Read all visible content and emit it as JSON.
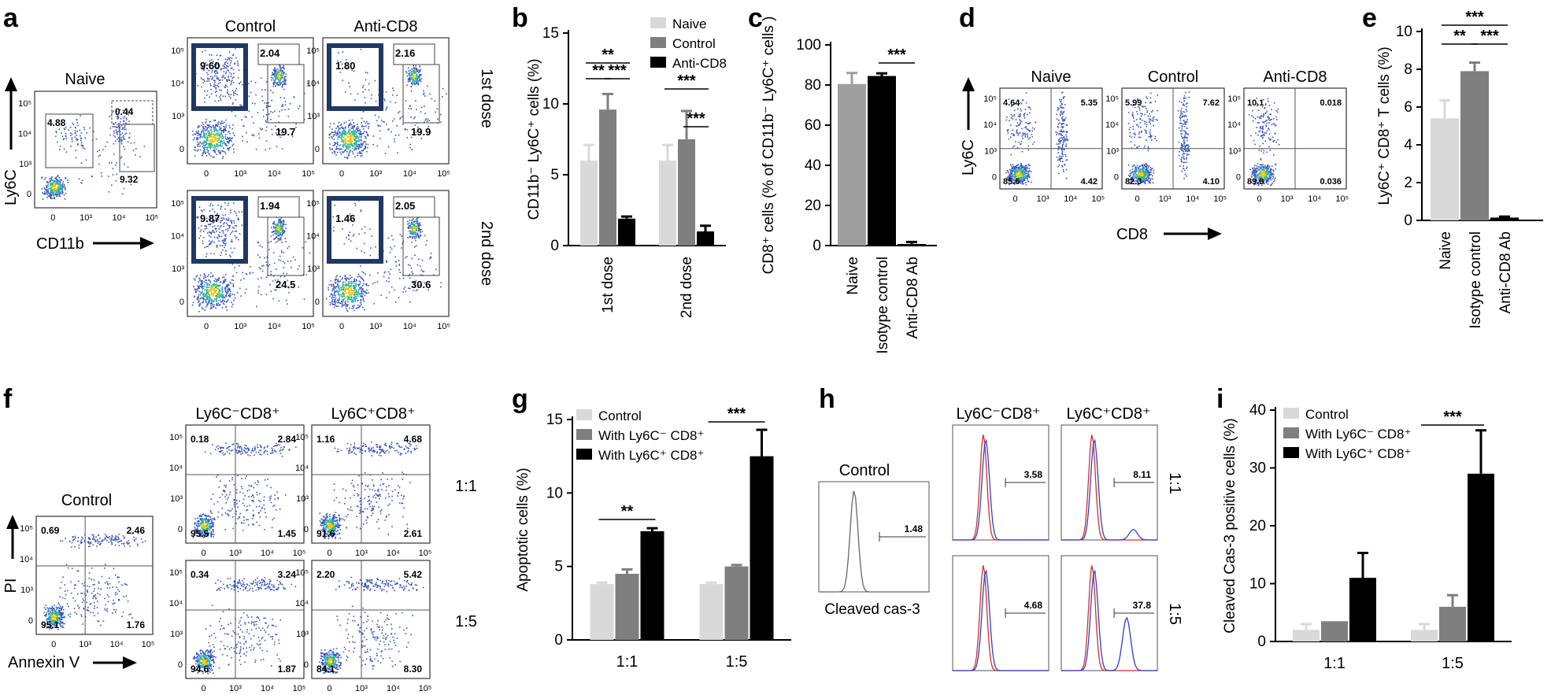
{
  "figure": {
    "panels": {
      "a": {
        "letter": "a",
        "naive_title": "Naive",
        "col_titles": [
          "Control",
          "Anti-CD8"
        ],
        "row_titles": [
          "1st dose",
          "2nd dose"
        ],
        "ylabel": "Ly6C",
        "xlabel": "CD11b",
        "naive_gates": [
          "4.88",
          "0.44",
          "9.32"
        ],
        "plots": [
          {
            "gates": [
              "9.60",
              "2.04",
              "19.7"
            ]
          },
          {
            "gates": [
              "1.80",
              "2.16",
              "19.9"
            ]
          },
          {
            "gates": [
              "9.87",
              "1.94",
              "24.5"
            ]
          },
          {
            "gates": [
              "1.46",
              "2.05",
              "30.6"
            ]
          }
        ]
      },
      "d": {
        "letter": "d",
        "titles": [
          "Naive",
          "Control",
          "Anti-CD8"
        ],
        "ylabel": "Ly6C",
        "xlabel": "CD8",
        "quads": [
          [
            "4.64",
            "5.35",
            "85.6",
            "4.42"
          ],
          [
            "5.99",
            "7.62",
            "82.3",
            "4.10"
          ],
          [
            "10.1",
            "0.018",
            "89.9",
            "0.036"
          ]
        ]
      },
      "f": {
        "letter": "f",
        "control_title": "Control",
        "col_titles": [
          "Ly6C⁻CD8⁺",
          "Ly6C⁺CD8⁺"
        ],
        "row_titles": [
          "1:1",
          "1:5"
        ],
        "ylabel": "PI",
        "xlabel": "Annexin V",
        "control_quads": [
          "0.69",
          "2.46",
          "95.1",
          "1.76"
        ],
        "plots": [
          [
            "0.18",
            "2.84",
            "95.5",
            "1.45"
          ],
          [
            "1.16",
            "4.68",
            "91.6",
            "2.61"
          ],
          [
            "0.34",
            "3.24",
            "94.6",
            "1.87"
          ],
          [
            "2.20",
            "5.42",
            "84.1",
            "8.30"
          ]
        ]
      },
      "h": {
        "letter": "h",
        "control_title": "Control",
        "control_value": "1.48",
        "xlabel": "Cleaved cas-3",
        "col_titles": [
          "Ly6C⁻CD8⁺",
          "Ly6C⁺CD8⁺"
        ],
        "row_titles": [
          "1:1",
          "1:5"
        ],
        "values": [
          "3.58",
          "8.11",
          "4.68",
          "37.8"
        ]
      }
    }
  },
  "chart_data": [
    {
      "panel": "b",
      "type": "bar",
      "categories": [
        "1st dose",
        "2nd dose"
      ],
      "series": [
        {
          "name": "Naive",
          "values": [
            6.0,
            6.0
          ],
          "errors": [
            1.1,
            1.1
          ],
          "color": "#d9d9d9"
        },
        {
          "name": "Control",
          "values": [
            9.6,
            7.5
          ],
          "errors": [
            1.1,
            2.0
          ],
          "color": "#7f7f7f"
        },
        {
          "name": "Anti-CD8",
          "values": [
            1.9,
            1.0
          ],
          "errors": [
            0.15,
            0.4
          ],
          "color": "#000000"
        }
      ],
      "ylabel": "CD11b⁻ Ly6C⁺ cells (%)",
      "xlabel": "",
      "ylim": [
        0,
        15
      ],
      "yticks": [
        0,
        5,
        10,
        15
      ],
      "legend": "top-right",
      "significance": [
        {
          "group": 0,
          "from": 0,
          "to": 2,
          "label": "**"
        },
        {
          "group": 0,
          "from": 0,
          "to": 1,
          "label": "**"
        },
        {
          "group": 0,
          "from": 1,
          "to": 2,
          "label": "***"
        },
        {
          "group": 1,
          "from": 0,
          "to": 2,
          "label": "***"
        },
        {
          "group": 1,
          "from": 1,
          "to": 2,
          "label": "***"
        }
      ]
    },
    {
      "panel": "c",
      "type": "bar",
      "categories": [
        "Naive",
        "Isotype control",
        "Anti-CD8 Ab"
      ],
      "values": [
        80.5,
        84.5,
        0.8
      ],
      "errors": [
        5.5,
        1.3,
        1.0
      ],
      "colors": [
        "#9e9e9e",
        "#000000",
        "#000000"
      ],
      "ylabel": "CD8⁺ cells (% of CD11b⁻ Ly6C⁺ cells )",
      "ylim": [
        0,
        100
      ],
      "yticks": [
        0,
        20,
        40,
        60,
        80,
        100
      ],
      "significance": [
        {
          "from": 1,
          "to": 2,
          "label": "***"
        }
      ]
    },
    {
      "panel": "e",
      "type": "bar",
      "categories": [
        "Naive",
        "Isotype control",
        "Anti-CD8 Ab"
      ],
      "values": [
        5.4,
        7.9,
        0.15
      ],
      "errors": [
        0.95,
        0.45,
        0.05
      ],
      "colors": [
        "#d9d9d9",
        "#7f7f7f",
        "#000000"
      ],
      "ylabel": "Ly6C⁺ CD8⁺ T cells (%)",
      "ylim": [
        0,
        10
      ],
      "yticks": [
        0,
        2,
        4,
        6,
        8,
        10
      ],
      "significance": [
        {
          "from": 0,
          "to": 2,
          "label": "***"
        },
        {
          "from": 0,
          "to": 1,
          "label": "**"
        },
        {
          "from": 1,
          "to": 2,
          "label": "***"
        }
      ]
    },
    {
      "panel": "g",
      "type": "bar",
      "categories": [
        "1:1",
        "1:5"
      ],
      "series": [
        {
          "name": "Control",
          "values": [
            3.8,
            3.8
          ],
          "errors": [
            0.1,
            0.1
          ],
          "color": "#d9d9d9"
        },
        {
          "name": "With Ly6C⁻ CD8⁺",
          "values": [
            4.5,
            5.0
          ],
          "errors": [
            0.3,
            0.1
          ],
          "color": "#7f7f7f"
        },
        {
          "name": "With Ly6C⁺ CD8⁺",
          "values": [
            7.4,
            12.5
          ],
          "errors": [
            0.2,
            1.8
          ],
          "color": "#000000"
        }
      ],
      "ylabel": "Apoptotic cells (%)",
      "ylim": [
        0,
        15
      ],
      "yticks": [
        0,
        5,
        10,
        15
      ],
      "legend": "top-left",
      "significance": [
        {
          "group": 0,
          "from": 0,
          "to": 2,
          "label": "**"
        },
        {
          "group": 1,
          "from": 0,
          "to": 2,
          "label": "***"
        }
      ]
    },
    {
      "panel": "i",
      "type": "bar",
      "categories": [
        "1:1",
        "1:5"
      ],
      "series": [
        {
          "name": "Control",
          "values": [
            2.0,
            2.0
          ],
          "errors": [
            1.0,
            1.0
          ],
          "color": "#d9d9d9"
        },
        {
          "name": "With Ly6C⁻ CD8⁺",
          "values": [
            3.5,
            6.0
          ],
          "errors": [
            0.0,
            2.0
          ],
          "color": "#7f7f7f"
        },
        {
          "name": "With Ly6C⁺ CD8⁺",
          "values": [
            11.0,
            29.0
          ],
          "errors": [
            4.3,
            7.5
          ],
          "color": "#000000"
        }
      ],
      "ylabel": "Cleaved Cas-3 positive cells (%)",
      "ylim": [
        0,
        40
      ],
      "yticks": [
        0,
        10,
        20,
        30,
        40
      ],
      "legend": "top-left",
      "significance": [
        {
          "group": 1,
          "from": 0,
          "to": 2,
          "label": "***"
        }
      ]
    }
  ]
}
